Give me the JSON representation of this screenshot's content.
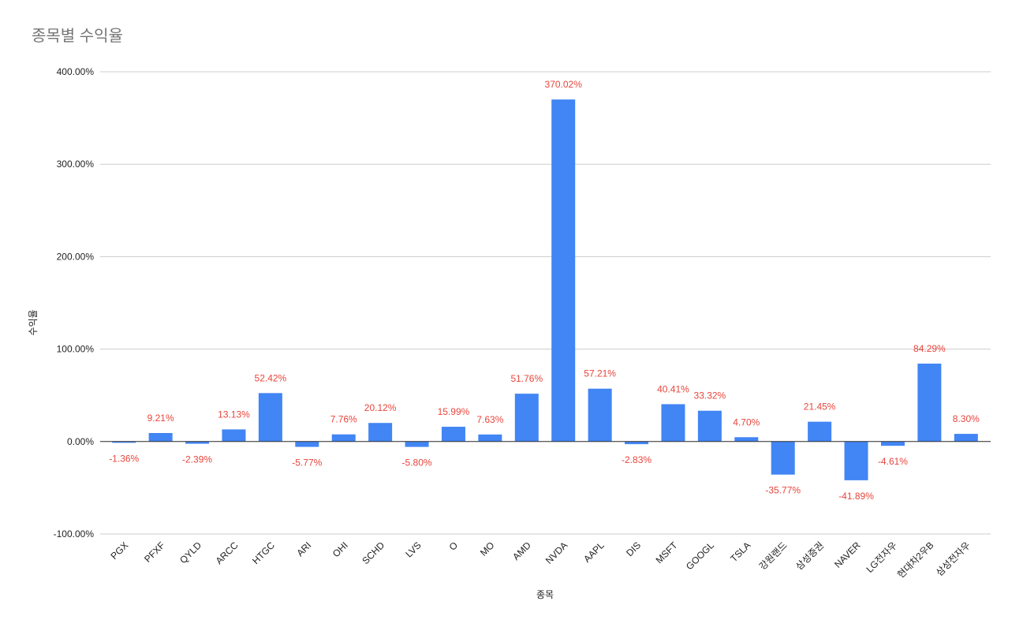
{
  "chart_data": {
    "type": "bar",
    "title": "종목별 수익율",
    "x_label": "종목",
    "y_label": "수익율",
    "categories": [
      "PGX",
      "PFXF",
      "QYLD",
      "ARCC",
      "HTGC",
      "ARI",
      "OHI",
      "SCHD",
      "LVS",
      "O",
      "MO",
      "AMD",
      "NVDA",
      "AAPL",
      "DIS",
      "MSFT",
      "GOOGL",
      "TSLA",
      "강원랜드",
      "삼성증권",
      "NAVER",
      "LG전자우",
      "현대차2우B",
      "삼성전자우"
    ],
    "values": [
      -1.36,
      9.21,
      -2.39,
      13.13,
      52.42,
      -5.77,
      7.76,
      20.12,
      -5.8,
      15.99,
      7.63,
      51.76,
      370.02,
      57.21,
      -2.83,
      40.41,
      33.32,
      4.7,
      -35.77,
      21.45,
      -41.89,
      -4.61,
      84.29,
      8.3
    ],
    "value_labels": [
      "-1.36%",
      "9.21%",
      "-2.39%",
      "13.13%",
      "52.42%",
      "-5.77%",
      "7.76%",
      "20.12%",
      "-5.80%",
      "15.99%",
      "7.63%",
      "51.76%",
      "370.02%",
      "57.21%",
      "-2.83%",
      "40.41%",
      "33.32%",
      "4.70%",
      "-35.77%",
      "21.45%",
      "-41.89%",
      "-4.61%",
      "84.29%",
      "8.30%"
    ],
    "color": "#4285f4",
    "value_label_color": "#e8453c",
    "ylim": [
      -100,
      400
    ],
    "yticks": [
      {
        "value": -100,
        "label": "-100.00%"
      },
      {
        "value": 0,
        "label": "0.00%"
      },
      {
        "value": 100,
        "label": "100.00%"
      },
      {
        "value": 200,
        "label": "200.00%"
      },
      {
        "value": 300,
        "label": "300.00%"
      },
      {
        "value": 400,
        "label": "400.00%"
      }
    ],
    "grid": true
  }
}
